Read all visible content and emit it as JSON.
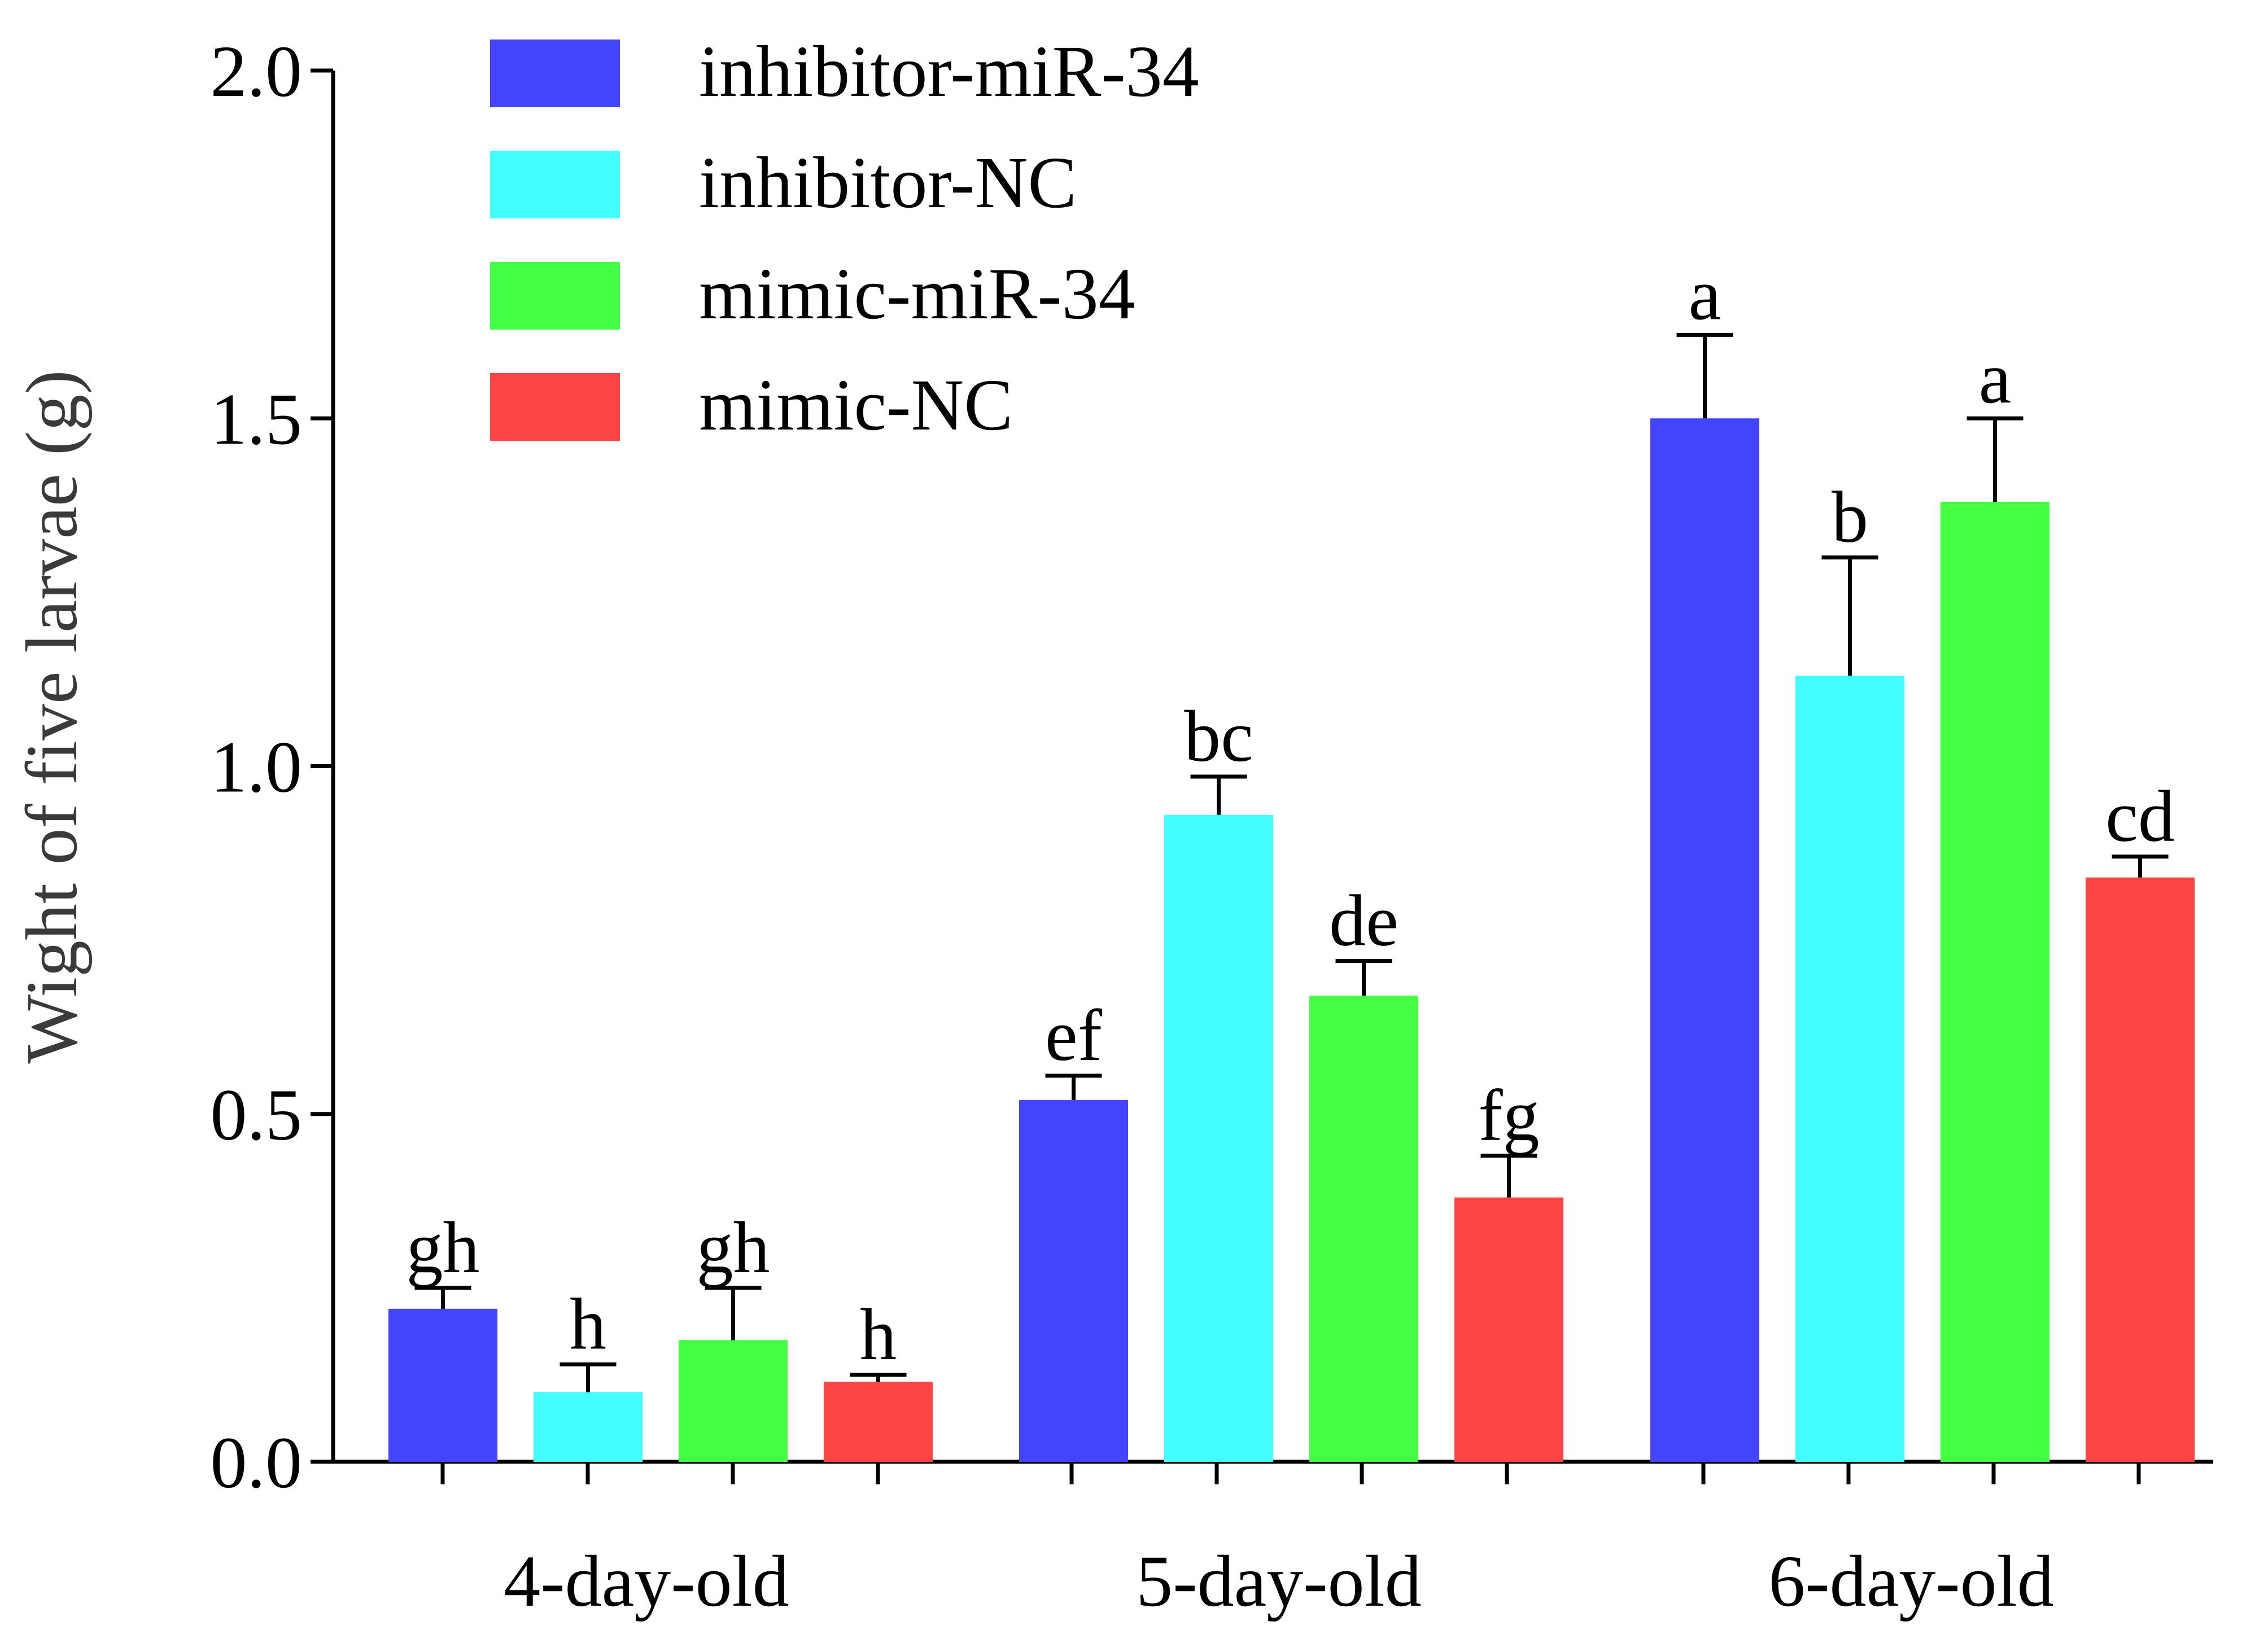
{
  "chart_data": {
    "type": "bar",
    "title": "",
    "xlabel": "",
    "ylabel": "Wight of five larvae (g)",
    "ylim": [
      0,
      2.0
    ],
    "yticks": [
      "0.0",
      "0.5",
      "1.0",
      "1.5",
      "2.0"
    ],
    "ytick_values": [
      0,
      0.5,
      1.0,
      1.5,
      2.0
    ],
    "categories": [
      "4-day-old",
      "5-day-old",
      "6-day-old"
    ],
    "legend_position": "top-left",
    "grid": false,
    "series": [
      {
        "name": "inhibitor-miR-34",
        "color": "#4444FF",
        "values": [
          0.22,
          0.52,
          1.5
        ],
        "errors": [
          0.03,
          0.035,
          0.12
        ],
        "labels": [
          "gh",
          "ef",
          "a"
        ]
      },
      {
        "name": "inhibitor-NC",
        "color": "#44FFFF",
        "values": [
          0.1,
          0.93,
          1.13
        ],
        "errors": [
          0.04,
          0.055,
          0.17
        ],
        "labels": [
          "h",
          "bc",
          "b"
        ]
      },
      {
        "name": "mimic-miR-34",
        "color": "#44FF44",
        "values": [
          0.175,
          0.67,
          1.38
        ],
        "errors": [
          0.075,
          0.05,
          0.12
        ],
        "labels": [
          "gh",
          "de",
          "a"
        ]
      },
      {
        "name": "mimic-NC",
        "color": "#FF4444",
        "values": [
          0.115,
          0.38,
          0.84
        ],
        "errors": [
          0.01,
          0.06,
          0.03
        ],
        "labels": [
          "h",
          "fg",
          "cd"
        ]
      }
    ]
  }
}
